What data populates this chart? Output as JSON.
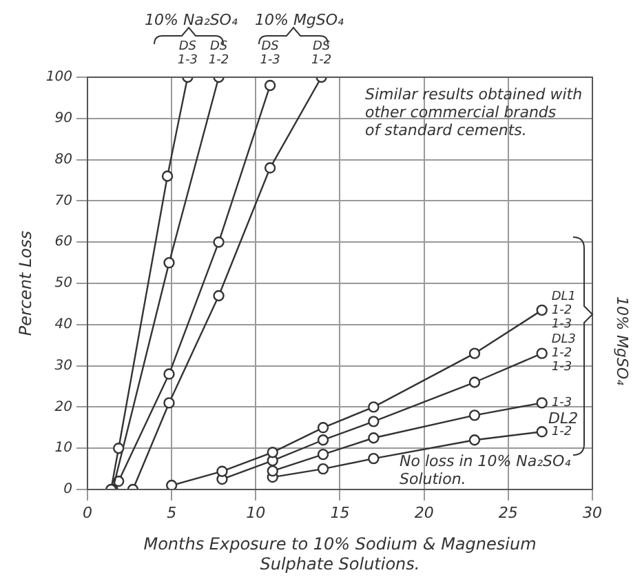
{
  "chart_data": {
    "type": "line",
    "xlabel": "Months Exposure to 10% Sodium & Magnesium\nSulphate Solutions.",
    "ylabel": "Percent Loss",
    "xlim": [
      0,
      30
    ],
    "xticks": [
      0,
      5,
      10,
      15,
      20,
      25,
      30
    ],
    "ylim": [
      0,
      100
    ],
    "yticks": [
      0,
      10,
      20,
      30,
      40,
      50,
      60,
      70,
      80,
      90,
      100
    ],
    "grid": true,
    "legend": false,
    "marker": "circle",
    "line_style": "solid",
    "series": [
      {
        "color": "#333333",
        "x": [
          1.4,
          1.85,
          4.75,
          5.95
        ],
        "values": [
          0,
          10,
          76,
          100
        ]
      },
      {
        "color": "#333333",
        "x": [
          1.5,
          4.85,
          7.8
        ],
        "values": [
          0,
          55,
          100
        ]
      },
      {
        "color": "#333333",
        "x": [
          1.85,
          4.85,
          7.8,
          10.85
        ],
        "values": [
          2,
          28,
          60,
          98
        ]
      },
      {
        "color": "#333333",
        "x": [
          2.7,
          4.85,
          7.8,
          10.85,
          13.9
        ],
        "values": [
          0,
          21,
          47,
          78,
          100
        ]
      },
      {
        "color": "#333333",
        "x": [
          5,
          8,
          11,
          14,
          17,
          23,
          27
        ],
        "values": [
          1,
          4.4,
          9,
          15,
          20,
          33,
          43.5
        ]
      },
      {
        "color": "#333333",
        "x": [
          8,
          11,
          14,
          17,
          23,
          27
        ],
        "values": [
          2.5,
          7,
          12,
          16.5,
          26,
          33
        ]
      },
      {
        "color": "#333333",
        "x": [
          11,
          14,
          17,
          23,
          27
        ],
        "values": [
          4.5,
          8.5,
          12.5,
          18,
          21
        ]
      },
      {
        "color": "#333333",
        "x": [
          11,
          14,
          17,
          23,
          27
        ],
        "values": [
          3,
          5,
          7.5,
          12,
          14
        ]
      }
    ],
    "annotations": [
      "10% Na₂SO₄",
      "10% MgSO₄",
      "Similar results obtained with\nother commercial brands\nof standard cements.",
      "No loss in 10% Na₂SO₄\nSolution.",
      "10% MgSO₄",
      "DL2",
      {
        "text": "DS\n1-3",
        "x": 5.95,
        "y": 100
      },
      {
        "text": "DS\n1-2",
        "x": 7.8,
        "y": 100
      },
      {
        "text": "DS\n1-3",
        "x": 10.85,
        "y": 98
      },
      {
        "text": "DS\n1-2",
        "x": 13.9,
        "y": 100
      },
      {
        "text": "DL1\n1-2\n1-3",
        "x": 27,
        "y": 43.5
      },
      {
        "text": "DL3\n1-2\n1-3",
        "x": 27,
        "y": 33
      },
      {
        "text": "1-3",
        "x": 27,
        "y": 21
      },
      {
        "text": "1-2",
        "x": 27,
        "y": 14
      }
    ]
  }
}
